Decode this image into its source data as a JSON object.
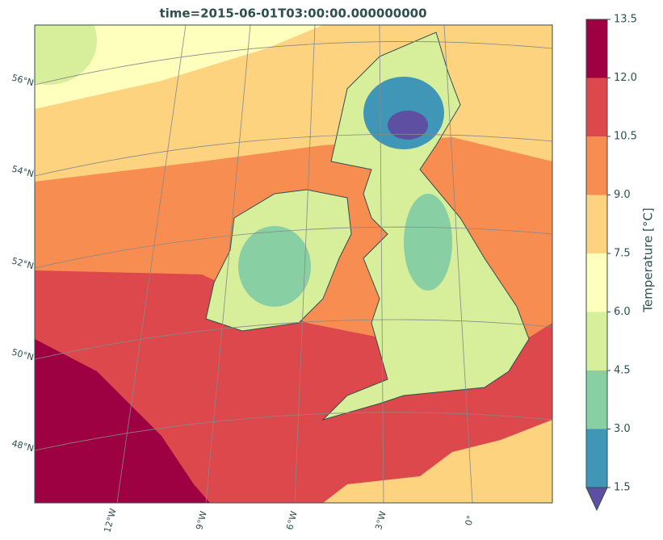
{
  "map": {
    "title": "time=2015-06-01T03:00:00.000000000",
    "lat_labels": [
      "56°N",
      "54°N",
      "52°N",
      "50°N",
      "48°N"
    ],
    "lon_labels": [
      "12°W",
      "9°W",
      "6°W",
      "3°W",
      "0°"
    ]
  },
  "colorbar": {
    "label": "Temperature [°C]",
    "ylim": [
      1.5,
      13.5
    ],
    "yticks": [
      1.5,
      {
        "value": 3,
        "label": "3.0"
      },
      4.5,
      {
        "value": 6,
        "label": "6.0"
      },
      7.5,
      {
        "value": 9,
        "label": "9.0"
      },
      10.5,
      {
        "value": 12,
        "label": "12.0"
      },
      13.5
    ],
    "colors": [
      "#3f96b7",
      "#88cfa4",
      "#d7ee9b",
      "#fefebd",
      "#fdd380",
      "#f88d52",
      "#dc484c",
      "#9e0142"
    ],
    "extend_color": "#5e4fa2"
  }
}
